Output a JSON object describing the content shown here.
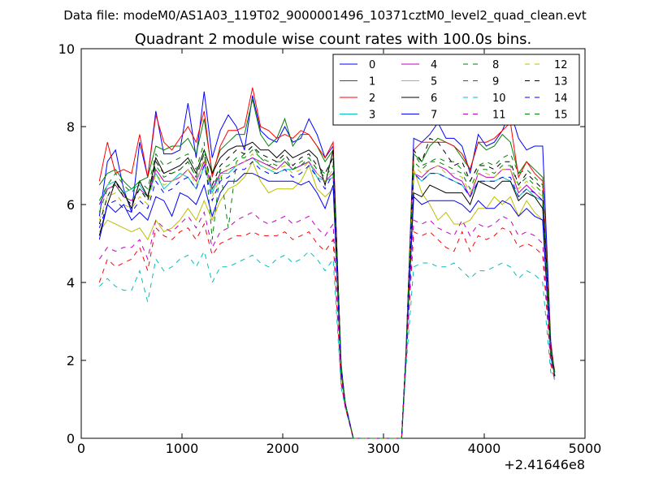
{
  "chart_data": {
    "type": "line",
    "suptitle": "Data file: modeM0/AS1A03_119T02_9000001496_10371cztM0_level2_quad_clean.evt",
    "title": "Quadrant 2 module wise count rates with 100.0s bins.",
    "xlabel": "",
    "ylabel": "",
    "x_offset_label": "+2.41646e8",
    "xlim": [
      0,
      5000
    ],
    "ylim": [
      0,
      10
    ],
    "xticks": [
      0,
      1000,
      2000,
      3000,
      4000,
      5000
    ],
    "yticks": [
      0,
      2,
      4,
      6,
      8,
      10
    ],
    "legend_position": "top-right",
    "legend_columns": 4,
    "x": [
      180,
      260,
      340,
      420,
      500,
      580,
      660,
      740,
      820,
      900,
      980,
      1060,
      1140,
      1220,
      1300,
      1380,
      1460,
      1540,
      1620,
      1700,
      1780,
      1860,
      1940,
      2020,
      2100,
      2180,
      2260,
      2340,
      2420,
      2500,
      2580,
      2620,
      2700,
      2780,
      2860,
      2940,
      3020,
      3100,
      3180,
      3220,
      3300,
      3380,
      3460,
      3540,
      3620,
      3700,
      3780,
      3860,
      3940,
      4020,
      4100,
      4180,
      4260,
      4340,
      4420,
      4500,
      4580,
      4660,
      4700
    ],
    "series": [
      {
        "name": "0",
        "color": "#0000ff",
        "dash": "solid",
        "values": [
          5.7,
          7.1,
          7.4,
          6.4,
          5.8,
          7.6,
          6.7,
          8.4,
          7.3,
          7.3,
          7.4,
          8.6,
          7.2,
          8.9,
          7.2,
          7.9,
          8.3,
          8.0,
          7.4,
          8.8,
          7.9,
          7.7,
          7.6,
          8.0,
          7.6,
          7.7,
          8.2,
          7.8,
          7.2,
          7.5,
          1.8,
          0.9,
          0.0,
          0.0,
          0.0,
          0.0,
          0.0,
          0.0,
          0.0,
          2.0,
          7.7,
          7.6,
          7.8,
          8.1,
          7.7,
          7.7,
          7.5,
          6.8,
          7.8,
          7.5,
          7.6,
          7.9,
          8.4,
          7.7,
          7.4,
          7.5,
          7.5,
          2.5,
          1.6
        ]
      },
      {
        "name": "1",
        "color": "#008000",
        "dash": "solid",
        "values": [
          6.5,
          6.8,
          6.9,
          6.6,
          6.4,
          6.6,
          6.7,
          7.5,
          7.4,
          7.5,
          7.5,
          7.7,
          7.3,
          8.2,
          6.8,
          7.4,
          7.6,
          7.8,
          7.8,
          8.7,
          7.8,
          7.5,
          7.7,
          8.2,
          7.5,
          7.8,
          7.8,
          7.5,
          7.1,
          7.4,
          1.9,
          0.9,
          0.0,
          0.0,
          0.0,
          0.0,
          0.0,
          0.0,
          0.0,
          2.0,
          7.3,
          7.1,
          7.5,
          7.7,
          7.6,
          7.5,
          7.2,
          6.9,
          7.6,
          7.4,
          7.5,
          7.8,
          7.6,
          6.8,
          7.1,
          6.9,
          6.7,
          2.3,
          1.7
        ]
      },
      {
        "name": "2",
        "color": "#ff0000",
        "dash": "solid",
        "values": [
          6.6,
          7.6,
          6.8,
          6.9,
          6.8,
          7.8,
          6.7,
          8.3,
          7.6,
          7.4,
          7.7,
          8.0,
          7.6,
          8.4,
          6.7,
          7.5,
          7.9,
          7.9,
          8.0,
          9.0,
          8.0,
          7.9,
          7.7,
          7.8,
          7.7,
          7.9,
          7.8,
          7.5,
          7.2,
          7.6,
          1.8,
          0.9,
          0.0,
          0.0,
          0.0,
          0.0,
          0.0,
          0.0,
          0.0,
          2.0,
          7.4,
          7.6,
          7.6,
          7.6,
          7.6,
          7.5,
          7.3,
          6.9,
          7.6,
          7.6,
          7.7,
          7.9,
          8.1,
          6.7,
          7.1,
          6.8,
          6.6,
          2.4,
          1.7
        ]
      },
      {
        "name": "3",
        "color": "#00bfbf",
        "dash": "solid",
        "values": [
          6.0,
          6.5,
          6.6,
          6.3,
          6.4,
          6.5,
          6.2,
          6.8,
          6.4,
          6.6,
          6.8,
          6.7,
          6.4,
          7.0,
          6.3,
          6.8,
          6.8,
          7.0,
          7.1,
          7.2,
          7.0,
          6.9,
          6.8,
          6.9,
          6.9,
          7.0,
          7.1,
          6.7,
          6.6,
          6.7,
          1.8,
          0.9,
          0.0,
          0.0,
          0.0,
          0.0,
          0.0,
          0.0,
          0.0,
          2.0,
          6.8,
          6.6,
          6.8,
          6.8,
          6.7,
          6.6,
          6.5,
          6.2,
          6.6,
          6.6,
          6.6,
          6.7,
          6.6,
          6.2,
          6.4,
          6.2,
          6.1,
          2.2,
          1.6
        ]
      },
      {
        "name": "4",
        "color": "#bf00bf",
        "dash": "solid",
        "values": [
          6.0,
          6.4,
          6.5,
          6.2,
          6.1,
          6.4,
          6.2,
          6.9,
          6.6,
          6.6,
          6.7,
          6.9,
          6.6,
          7.1,
          6.4,
          6.8,
          6.9,
          7.0,
          7.1,
          7.2,
          7.1,
          7.0,
          6.9,
          7.1,
          6.9,
          7.0,
          7.1,
          6.8,
          6.6,
          6.8,
          1.8,
          0.9,
          0.0,
          0.0,
          0.0,
          0.0,
          0.0,
          0.0,
          0.0,
          2.0,
          6.8,
          6.7,
          6.9,
          7.0,
          6.9,
          6.7,
          6.6,
          6.2,
          6.8,
          6.7,
          6.7,
          6.9,
          6.9,
          6.3,
          6.5,
          6.3,
          6.1,
          2.2,
          1.6
        ]
      },
      {
        "name": "5",
        "color": "#bfbf00",
        "dash": "solid",
        "values": [
          5.3,
          5.6,
          5.5,
          5.4,
          5.3,
          5.4,
          5.1,
          5.6,
          5.3,
          5.4,
          5.6,
          5.9,
          5.6,
          6.1,
          5.6,
          6.1,
          6.4,
          6.5,
          6.7,
          7.1,
          6.6,
          6.3,
          6.4,
          6.4,
          6.4,
          6.6,
          7.0,
          6.4,
          6.2,
          6.4,
          1.6,
          0.9,
          0.0,
          0.0,
          0.0,
          0.0,
          0.0,
          0.0,
          0.0,
          2.0,
          6.9,
          6.3,
          6.0,
          5.6,
          5.8,
          5.5,
          5.5,
          5.6,
          5.9,
          5.9,
          6.2,
          6.0,
          6.2,
          5.7,
          6.1,
          5.8,
          5.6,
          2.2,
          1.6
        ]
      },
      {
        "name": "6",
        "color": "#000000",
        "dash": "solid",
        "values": [
          5.2,
          6.0,
          6.6,
          6.3,
          5.9,
          6.6,
          6.2,
          7.2,
          6.8,
          6.9,
          7.0,
          7.2,
          6.8,
          7.4,
          6.8,
          7.2,
          7.4,
          7.5,
          7.5,
          7.6,
          7.4,
          7.4,
          7.2,
          7.4,
          7.2,
          7.3,
          7.4,
          7.2,
          6.5,
          7.4,
          1.8,
          0.9,
          0.0,
          0.0,
          0.0,
          0.0,
          0.0,
          0.0,
          0.0,
          2.0,
          6.3,
          6.2,
          6.5,
          6.4,
          6.3,
          6.3,
          6.3,
          6.0,
          6.6,
          6.5,
          6.4,
          6.6,
          6.6,
          6.1,
          6.3,
          6.2,
          5.9,
          2.2,
          1.6
        ]
      },
      {
        "name": "7",
        "color": "#0000ff",
        "dash": "solid",
        "values": [
          5.1,
          6.0,
          5.8,
          6.0,
          5.6,
          5.8,
          5.6,
          6.2,
          6.1,
          5.7,
          6.3,
          6.2,
          6.0,
          6.5,
          5.7,
          6.3,
          6.6,
          6.6,
          6.8,
          6.8,
          6.7,
          6.6,
          6.6,
          6.6,
          6.6,
          6.5,
          6.6,
          6.3,
          5.9,
          6.5,
          1.7,
          0.9,
          0.0,
          0.0,
          0.0,
          0.0,
          0.0,
          0.0,
          0.0,
          2.0,
          6.2,
          6.0,
          6.1,
          6.1,
          6.1,
          6.1,
          6.0,
          5.8,
          6.1,
          5.9,
          5.9,
          6.1,
          6.0,
          5.7,
          5.9,
          5.7,
          5.6,
          2.1,
          1.6
        ]
      },
      {
        "name": "8",
        "color": "#008000",
        "dash": "dashed",
        "values": [
          6.1,
          6.5,
          6.8,
          6.5,
          6.3,
          6.6,
          6.4,
          7.3,
          7.0,
          7.1,
          7.2,
          7.3,
          6.9,
          7.6,
          5.1,
          6.9,
          5.4,
          7.1,
          7.3,
          7.5,
          7.2,
          7.0,
          7.1,
          7.1,
          6.9,
          7.1,
          7.2,
          6.9,
          6.8,
          7.2,
          1.8,
          0.9,
          0.0,
          0.0,
          0.0,
          0.0,
          0.0,
          0.0,
          0.0,
          2.0,
          7.3,
          7.0,
          7.1,
          7.2,
          7.1,
          7.1,
          6.9,
          6.6,
          7.0,
          7.1,
          7.0,
          7.2,
          7.3,
          6.8,
          6.9,
          6.7,
          6.5,
          2.3,
          1.7
        ]
      },
      {
        "name": "9",
        "color": "#ff0000",
        "dash": "dashed",
        "values": [
          4.0,
          4.6,
          4.4,
          4.5,
          4.6,
          4.9,
          4.3,
          5.4,
          5.2,
          5.1,
          5.3,
          5.4,
          5.1,
          5.5,
          4.7,
          5.0,
          5.1,
          5.2,
          5.2,
          5.3,
          5.2,
          5.2,
          5.2,
          5.3,
          5.1,
          5.2,
          5.3,
          5.0,
          4.8,
          5.1,
          1.4,
          0.8,
          0.0,
          0.0,
          0.0,
          0.0,
          0.0,
          0.0,
          0.0,
          1.8,
          5.3,
          5.2,
          5.3,
          5.1,
          4.9,
          4.8,
          5.3,
          4.8,
          5.2,
          5.1,
          5.2,
          5.4,
          5.3,
          4.9,
          5.0,
          4.9,
          4.7,
          1.9,
          1.5
        ]
      },
      {
        "name": "10",
        "color": "#00bfbf",
        "dash": "dashed",
        "values": [
          3.9,
          4.1,
          3.9,
          3.8,
          3.8,
          4.3,
          3.5,
          4.6,
          4.3,
          4.4,
          4.6,
          4.7,
          4.4,
          4.8,
          4.0,
          4.4,
          4.4,
          4.5,
          4.6,
          4.7,
          4.5,
          4.4,
          4.6,
          4.7,
          4.5,
          4.6,
          4.8,
          4.6,
          4.3,
          4.6,
          1.3,
          0.8,
          0.0,
          0.0,
          0.0,
          0.0,
          0.0,
          0.0,
          0.0,
          1.7,
          4.4,
          4.5,
          4.5,
          4.4,
          4.4,
          4.5,
          4.3,
          4.1,
          4.3,
          4.3,
          4.4,
          4.5,
          4.4,
          4.1,
          4.3,
          4.2,
          4.0,
          1.7,
          1.5
        ]
      },
      {
        "name": "11",
        "color": "#bf00bf",
        "dash": "dashed",
        "values": [
          4.6,
          4.9,
          4.8,
          4.9,
          4.9,
          5.1,
          4.6,
          5.6,
          5.4,
          5.3,
          5.5,
          5.7,
          5.4,
          5.8,
          4.9,
          5.3,
          5.4,
          5.6,
          5.7,
          5.8,
          5.6,
          5.5,
          5.6,
          5.7,
          5.5,
          5.6,
          5.7,
          5.4,
          5.2,
          5.5,
          1.5,
          0.8,
          0.0,
          0.0,
          0.0,
          0.0,
          0.0,
          0.0,
          0.0,
          1.9,
          5.6,
          5.5,
          5.6,
          5.4,
          5.3,
          5.2,
          5.6,
          5.2,
          5.5,
          5.4,
          5.5,
          5.7,
          5.6,
          5.2,
          5.3,
          5.2,
          5.0,
          2.0,
          1.5
        ]
      },
      {
        "name": "12",
        "color": "#bfbf00",
        "dash": "dashed",
        "values": [
          5.6,
          6.2,
          6.3,
          6.0,
          5.9,
          6.2,
          6.0,
          6.8,
          6.5,
          6.6,
          6.7,
          6.9,
          6.5,
          7.2,
          6.2,
          6.7,
          6.9,
          7.0,
          7.1,
          7.3,
          7.0,
          6.9,
          6.9,
          7.0,
          6.8,
          6.9,
          7.1,
          6.8,
          6.6,
          6.9,
          1.8,
          0.9,
          0.0,
          0.0,
          0.0,
          0.0,
          0.0,
          0.0,
          0.0,
          2.0,
          7.0,
          6.8,
          6.9,
          7.0,
          6.8,
          6.8,
          6.7,
          6.3,
          6.8,
          6.8,
          6.7,
          6.9,
          6.9,
          6.4,
          6.6,
          6.4,
          6.2,
          2.2,
          1.6
        ]
      },
      {
        "name": "13",
        "color": "#000000",
        "dash": "dashed",
        "values": [
          5.5,
          6.2,
          6.6,
          6.2,
          6.0,
          6.4,
          6.1,
          7.1,
          6.8,
          6.8,
          6.9,
          7.1,
          6.7,
          7.3,
          6.5,
          7.0,
          7.2,
          7.4,
          7.3,
          7.5,
          7.3,
          7.2,
          7.1,
          7.3,
          7.0,
          7.2,
          7.3,
          7.0,
          6.8,
          7.2,
          1.8,
          0.9,
          0.0,
          0.0,
          0.0,
          0.0,
          0.0,
          0.0,
          0.0,
          2.0,
          7.4,
          7.1,
          7.7,
          7.6,
          7.3,
          7.0,
          7.1,
          6.6,
          7.0,
          7.0,
          6.9,
          7.1,
          7.1,
          6.5,
          6.8,
          6.6,
          6.4,
          2.3,
          1.6
        ]
      },
      {
        "name": "14",
        "color": "#0000ff",
        "dash": "dashed",
        "values": [
          5.4,
          6.0,
          6.1,
          5.9,
          5.8,
          6.1,
          5.9,
          6.6,
          6.3,
          6.4,
          6.6,
          6.7,
          6.4,
          7.0,
          6.1,
          6.6,
          6.7,
          6.9,
          6.9,
          7.1,
          6.9,
          6.8,
          6.8,
          6.9,
          6.7,
          6.8,
          7.0,
          6.7,
          6.4,
          6.8,
          1.8,
          0.9,
          0.0,
          0.0,
          0.0,
          0.0,
          0.0,
          0.0,
          0.0,
          2.0,
          6.8,
          6.6,
          6.8,
          6.8,
          6.7,
          6.6,
          6.5,
          6.2,
          6.6,
          6.6,
          6.6,
          6.7,
          6.7,
          6.2,
          6.4,
          6.3,
          6.1,
          2.2,
          1.6
        ]
      },
      {
        "name": "15",
        "color": "#008000",
        "dash": "dashed",
        "values": [
          5.8,
          6.4,
          6.5,
          6.2,
          6.1,
          6.4,
          6.2,
          7.0,
          6.7,
          6.8,
          6.9,
          7.1,
          6.7,
          7.3,
          6.4,
          6.9,
          7.0,
          7.2,
          7.2,
          7.4,
          7.2,
          7.1,
          7.0,
          7.2,
          6.9,
          7.0,
          7.2,
          6.9,
          6.7,
          7.0,
          1.8,
          0.9,
          0.0,
          0.0,
          0.0,
          0.0,
          0.0,
          0.0,
          0.0,
          2.0,
          7.1,
          6.9,
          7.1,
          7.1,
          7.0,
          6.9,
          6.8,
          6.4,
          6.9,
          6.9,
          6.8,
          7.0,
          7.0,
          6.5,
          6.7,
          6.5,
          6.3,
          2.2,
          1.6
        ]
      }
    ]
  }
}
